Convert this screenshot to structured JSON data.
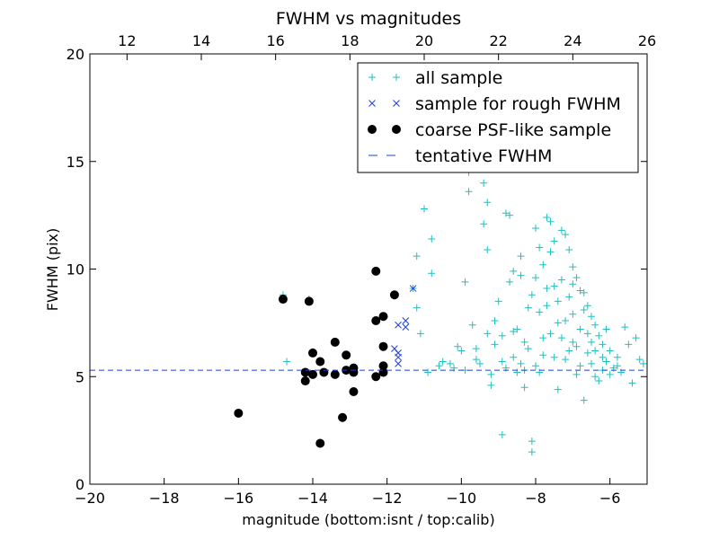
{
  "chart_data": {
    "type": "scatter",
    "title": "FWHM vs magnitudes",
    "xlabel": "magnitude (bottom:isnt / top:calib)",
    "ylabel": "FWHM (pix)",
    "xlim": [
      -20,
      -5
    ],
    "ylim": [
      0,
      20
    ],
    "x_ticks": [
      -20,
      -18,
      -16,
      -14,
      -12,
      -10,
      -8,
      -6
    ],
    "y_ticks": [
      0,
      5,
      10,
      15,
      20
    ],
    "top_axis": {
      "xlim": [
        11,
        26
      ],
      "ticks": [
        12,
        14,
        16,
        18,
        20,
        22,
        24,
        26
      ]
    },
    "grid": false,
    "legend_position": "top-right",
    "series": [
      {
        "name": "all sample",
        "marker": "plus",
        "color": "#1fbfbf",
        "points": [
          [
            -14.8,
            8.8
          ],
          [
            -14.7,
            5.7
          ],
          [
            -14.1,
            8.6
          ],
          [
            -12.3,
            9.9
          ],
          [
            -11.3,
            9.1
          ],
          [
            -11.2,
            10.6
          ],
          [
            -11.2,
            8.2
          ],
          [
            -11.1,
            7.0
          ],
          [
            -10.9,
            5.2
          ],
          [
            -11.0,
            12.8
          ],
          [
            -10.8,
            11.4
          ],
          [
            -10.8,
            9.8
          ],
          [
            -10.6,
            5.5
          ],
          [
            -10.5,
            5.7
          ],
          [
            -10.3,
            5.6
          ],
          [
            -10.2,
            5.4
          ],
          [
            -10.1,
            6.4
          ],
          [
            -10.0,
            6.2
          ],
          [
            -9.9,
            9.4
          ],
          [
            -9.9,
            5.3
          ],
          [
            -9.8,
            14.5
          ],
          [
            -9.8,
            13.6
          ],
          [
            -9.7,
            7.4
          ],
          [
            -9.6,
            5.8
          ],
          [
            -9.5,
            5.6
          ],
          [
            -9.4,
            14.0
          ],
          [
            -9.4,
            12.1
          ],
          [
            -9.3,
            13.1
          ],
          [
            -9.3,
            10.9
          ],
          [
            -9.2,
            5.1
          ],
          [
            -9.2,
            4.6
          ],
          [
            -9.1,
            7.6
          ],
          [
            -9.1,
            6.5
          ],
          [
            -9.0,
            8.5
          ],
          [
            -8.9,
            5.7
          ],
          [
            -8.9,
            2.3
          ],
          [
            -8.8,
            12.6
          ],
          [
            -8.8,
            5.4
          ],
          [
            -8.7,
            12.5
          ],
          [
            -8.7,
            9.4
          ],
          [
            -8.6,
            9.9
          ],
          [
            -8.6,
            7.1
          ],
          [
            -8.5,
            7.2
          ],
          [
            -8.5,
            5.2
          ],
          [
            -8.4,
            10.6
          ],
          [
            -8.4,
            9.7
          ],
          [
            -8.3,
            5.3
          ],
          [
            -8.3,
            4.5
          ],
          [
            -8.2,
            8.2
          ],
          [
            -8.2,
            6.3
          ],
          [
            -8.1,
            2.0
          ],
          [
            -8.1,
            1.5
          ],
          [
            -8.0,
            11.9
          ],
          [
            -8.0,
            9.6
          ],
          [
            -7.9,
            11.0
          ],
          [
            -7.9,
            8.0
          ],
          [
            -7.8,
            10.2
          ],
          [
            -7.8,
            6.8
          ],
          [
            -7.7,
            12.4
          ],
          [
            -7.7,
            8.3
          ],
          [
            -7.6,
            12.2
          ],
          [
            -7.6,
            10.8
          ],
          [
            -7.5,
            11.3
          ],
          [
            -7.5,
            9.2
          ],
          [
            -7.4,
            7.5
          ],
          [
            -7.4,
            4.4
          ],
          [
            -7.3,
            11.8
          ],
          [
            -7.3,
            9.5
          ],
          [
            -7.2,
            11.6
          ],
          [
            -7.2,
            5.8
          ],
          [
            -7.1,
            10.9
          ],
          [
            -7.1,
            8.7
          ],
          [
            -7.0,
            10.1
          ],
          [
            -7.0,
            6.6
          ],
          [
            -6.9,
            9.6
          ],
          [
            -6.9,
            5.1
          ],
          [
            -6.8,
            9.0
          ],
          [
            -6.8,
            7.2
          ],
          [
            -6.7,
            8.9
          ],
          [
            -6.7,
            3.9
          ],
          [
            -6.6,
            8.3
          ],
          [
            -6.6,
            6.1
          ],
          [
            -6.5,
            7.8
          ],
          [
            -6.5,
            5.6
          ],
          [
            -6.4,
            7.4
          ],
          [
            -6.4,
            5.0
          ],
          [
            -6.3,
            6.9
          ],
          [
            -6.3,
            4.8
          ],
          [
            -6.2,
            6.5
          ],
          [
            -6.2,
            5.3
          ],
          [
            -6.1,
            7.2
          ],
          [
            -6.1,
            5.7
          ],
          [
            -6.0,
            6.2
          ],
          [
            -5.9,
            5.4
          ],
          [
            -5.8,
            5.9
          ],
          [
            -5.7,
            5.2
          ],
          [
            -5.6,
            7.3
          ],
          [
            -5.5,
            6.5
          ],
          [
            -5.4,
            4.7
          ],
          [
            -5.3,
            6.8
          ],
          [
            -5.2,
            5.8
          ],
          [
            -5.1,
            5.6
          ],
          [
            -7.6,
            7.0
          ],
          [
            -7.8,
            6.0
          ],
          [
            -8.0,
            5.5
          ],
          [
            -7.5,
            5.9
          ],
          [
            -7.3,
            6.8
          ],
          [
            -7.1,
            6.2
          ],
          [
            -6.9,
            6.4
          ],
          [
            -6.8,
            5.5
          ],
          [
            -7.2,
            7.6
          ],
          [
            -7.0,
            7.9
          ],
          [
            -6.6,
            7.0
          ],
          [
            -6.4,
            6.2
          ],
          [
            -8.3,
            6.6
          ],
          [
            -8.6,
            5.9
          ],
          [
            -8.9,
            6.9
          ],
          [
            -9.3,
            7.0
          ],
          [
            -9.6,
            6.3
          ],
          [
            -8.1,
            8.8
          ],
          [
            -7.7,
            9.1
          ],
          [
            -7.4,
            8.5
          ],
          [
            -7.0,
            9.3
          ],
          [
            -6.7,
            8.1
          ],
          [
            -6.5,
            6.6
          ],
          [
            -6.2,
            5.9
          ],
          [
            -6.0,
            5.1
          ],
          [
            -5.8,
            5.5
          ],
          [
            -7.9,
            5.2
          ],
          [
            -8.4,
            5.6
          ]
        ]
      },
      {
        "name": "sample for rough FWHM",
        "marker": "x",
        "color": "#1f3fd6",
        "points": [
          [
            -11.3,
            9.1
          ],
          [
            -11.7,
            7.4
          ],
          [
            -11.5,
            7.6
          ],
          [
            -11.5,
            7.3
          ],
          [
            -11.8,
            6.3
          ],
          [
            -11.7,
            6.1
          ],
          [
            -11.7,
            5.9
          ],
          [
            -11.7,
            5.6
          ]
        ]
      },
      {
        "name": "coarse PSF-like sample",
        "marker": "dot",
        "color": "#000000",
        "points": [
          [
            -16.0,
            3.3
          ],
          [
            -14.8,
            8.6
          ],
          [
            -14.1,
            8.5
          ],
          [
            -14.2,
            5.2
          ],
          [
            -14.2,
            4.8
          ],
          [
            -14.0,
            5.1
          ],
          [
            -14.0,
            6.1
          ],
          [
            -13.8,
            5.7
          ],
          [
            -13.8,
            1.9
          ],
          [
            -13.7,
            5.2
          ],
          [
            -13.4,
            6.6
          ],
          [
            -13.4,
            5.1
          ],
          [
            -13.2,
            3.1
          ],
          [
            -13.1,
            5.3
          ],
          [
            -13.1,
            6.0
          ],
          [
            -12.9,
            5.2
          ],
          [
            -12.9,
            4.3
          ],
          [
            -12.9,
            5.4
          ],
          [
            -12.3,
            9.9
          ],
          [
            -12.3,
            7.6
          ],
          [
            -12.3,
            5.0
          ],
          [
            -12.1,
            7.8
          ],
          [
            -12.1,
            6.4
          ],
          [
            -12.1,
            5.5
          ],
          [
            -12.1,
            5.2
          ],
          [
            -11.8,
            8.8
          ]
        ]
      },
      {
        "name": "tentative FWHM",
        "marker": "dashed-line",
        "color": "#1f3fd6",
        "y": 5.3
      }
    ]
  }
}
